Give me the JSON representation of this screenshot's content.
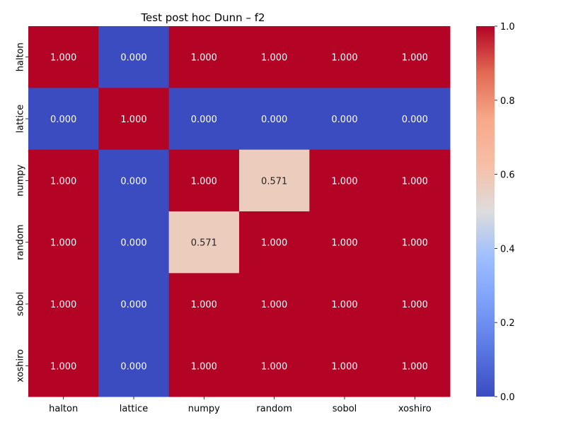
{
  "chart_data": {
    "type": "heatmap",
    "title": "Test post hoc Dunn – f2",
    "xlabel": "",
    "ylabel": "",
    "x_categories": [
      "halton",
      "lattice",
      "numpy",
      "random",
      "sobol",
      "xoshiro"
    ],
    "y_categories": [
      "halton",
      "lattice",
      "numpy",
      "random",
      "sobol",
      "xoshiro"
    ],
    "values": [
      [
        1.0,
        0.0,
        1.0,
        1.0,
        1.0,
        1.0
      ],
      [
        0.0,
        1.0,
        0.0,
        0.0,
        0.0,
        0.0
      ],
      [
        1.0,
        0.0,
        1.0,
        0.571,
        1.0,
        1.0
      ],
      [
        1.0,
        0.0,
        0.571,
        1.0,
        1.0,
        1.0
      ],
      [
        1.0,
        0.0,
        1.0,
        1.0,
        1.0,
        1.0
      ],
      [
        1.0,
        0.0,
        1.0,
        1.0,
        1.0,
        1.0
      ]
    ],
    "annotation_format": "0.000",
    "colormap": "coolwarm",
    "colorbar": {
      "range": [
        0.0,
        1.0
      ],
      "ticks": [
        0.0,
        0.2,
        0.4,
        0.6,
        0.8,
        1.0
      ],
      "tick_labels": [
        "0.0",
        "0.2",
        "0.4",
        "0.6",
        "0.8",
        "1.0"
      ]
    },
    "grid": false
  }
}
